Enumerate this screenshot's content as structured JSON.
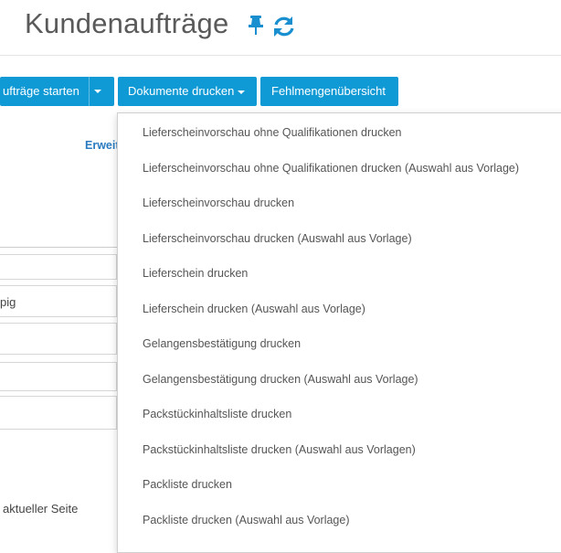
{
  "header": {
    "title": "Kundenaufträge"
  },
  "toolbar": {
    "buttons": [
      "ufträge starten",
      "Dokumente drucken",
      "Fehlmengenübersicht"
    ]
  },
  "background": {
    "link": "Erweit",
    "field_text": "pig",
    "footer_text": "aktueller Seite"
  },
  "menu": {
    "items": [
      "Lieferscheinvorschau ohne Qualifikationen drucken",
      "Lieferscheinvorschau ohne Qualifikationen drucken (Auswahl aus Vorlage)",
      "Lieferscheinvorschau drucken",
      "Lieferscheinvorschau drucken (Auswahl aus Vorlage)",
      "Lieferschein drucken",
      "Lieferschein drucken (Auswahl aus Vorlage)",
      "Gelangensbestätigung drucken",
      "Gelangensbestätigung drucken (Auswahl aus Vorlage)",
      "Packstückinhaltsliste drucken",
      "Packstückinhaltsliste drucken (Auswahl aus Vorlagen)",
      "Packliste drucken",
      "Packliste drucken (Auswahl aus Vorlage)"
    ]
  }
}
